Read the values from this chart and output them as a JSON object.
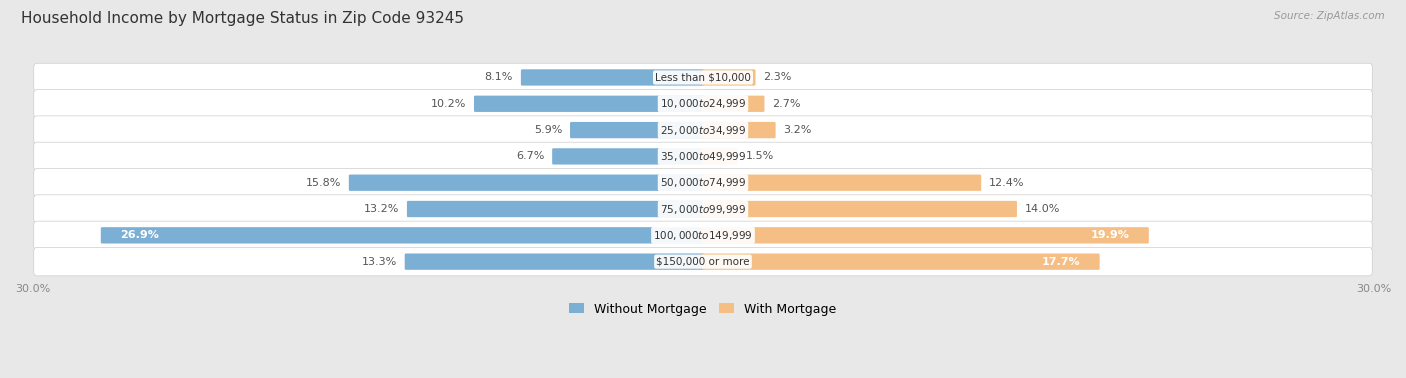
{
  "title": "Household Income by Mortgage Status in Zip Code 93245",
  "source": "Source: ZipAtlas.com",
  "categories": [
    "Less than $10,000",
    "$10,000 to $24,999",
    "$25,000 to $34,999",
    "$35,000 to $49,999",
    "$50,000 to $74,999",
    "$75,000 to $99,999",
    "$100,000 to $149,999",
    "$150,000 or more"
  ],
  "without_mortgage": [
    8.1,
    10.2,
    5.9,
    6.7,
    15.8,
    13.2,
    26.9,
    13.3
  ],
  "with_mortgage": [
    2.3,
    2.7,
    3.2,
    1.5,
    12.4,
    14.0,
    19.9,
    17.7
  ],
  "blue_color": "#7BAFD4",
  "orange_color": "#F5BE85",
  "max_val": 30.0,
  "outer_bg": "#E8E8E8",
  "row_bg": "#F7F7F7",
  "title_fontsize": 11,
  "label_fontsize": 8,
  "category_fontsize": 7.5,
  "axis_label_fontsize": 8,
  "legend_fontsize": 9
}
